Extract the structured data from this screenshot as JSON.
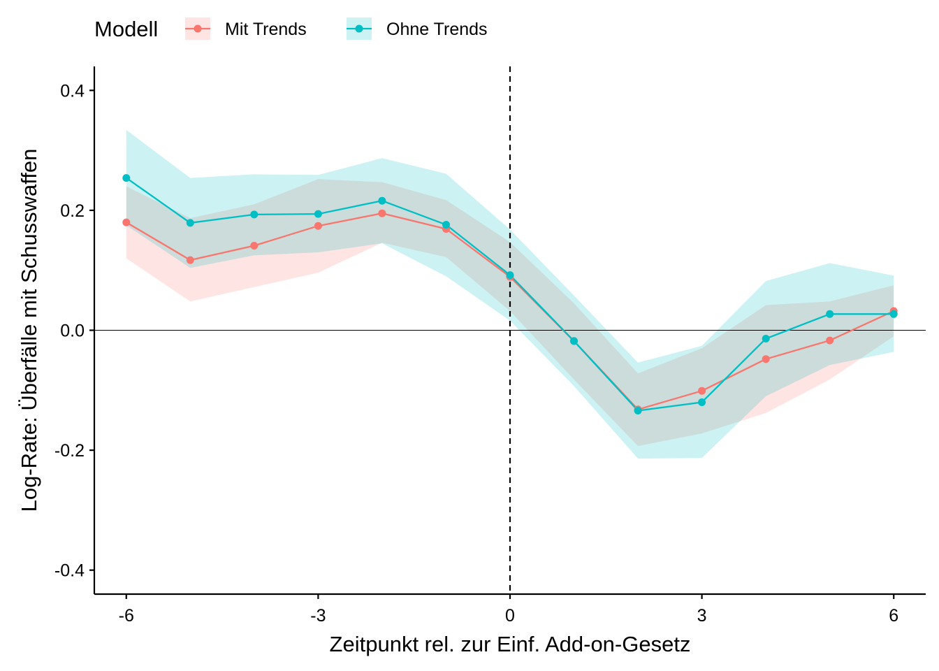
{
  "chart_data": {
    "type": "line",
    "xlabel": "Zeitpunkt rel. zur Einf. Add-on-Gesetz",
    "ylabel": "Log-Rate: Überfälle mit Schusswaffen",
    "xlim": [
      -6.5,
      6.5
    ],
    "ylim": [
      -0.44,
      0.44
    ],
    "xticks": [
      -6,
      -3,
      0,
      3,
      6
    ],
    "xtick_labels": [
      "-6",
      "-3",
      "0",
      "3",
      "6"
    ],
    "yticks": [
      -0.4,
      -0.2,
      0.0,
      0.2,
      0.4
    ],
    "ytick_labels": [
      "-0.4",
      "-0.2",
      "0.0",
      "0.2",
      "0.4"
    ],
    "reference_lines": {
      "vertical_dashed_x": 0,
      "horizontal_y": 0
    },
    "grid": false,
    "legend": {
      "title": "Modell",
      "position": "top-left"
    },
    "x": [
      -6,
      -5,
      -4,
      -3,
      -2,
      -1,
      0,
      1,
      2,
      3,
      4,
      5,
      6
    ],
    "series": [
      {
        "name": "Mit Trends",
        "color": "#F8766D",
        "values": [
          0.18,
          0.117,
          0.141,
          0.174,
          0.195,
          0.169,
          0.089,
          -0.018,
          -0.132,
          -0.101,
          -0.048,
          -0.017,
          0.032
        ],
        "lower": [
          0.12,
          0.048,
          0.072,
          0.096,
          0.146,
          0.122,
          0.032,
          -0.082,
          -0.193,
          -0.172,
          -0.138,
          -0.082,
          -0.01
        ],
        "upper": [
          0.24,
          0.187,
          0.21,
          0.252,
          0.247,
          0.217,
          0.147,
          0.045,
          -0.072,
          -0.03,
          0.042,
          0.048,
          0.075
        ]
      },
      {
        "name": "Ohne Trends",
        "color": "#00BFC4",
        "values": [
          0.254,
          0.179,
          0.193,
          0.194,
          0.216,
          0.176,
          0.092,
          -0.018,
          -0.134,
          -0.12,
          -0.014,
          0.027,
          0.027
        ],
        "lower": [
          0.175,
          0.104,
          0.125,
          0.13,
          0.145,
          0.09,
          0.016,
          -0.093,
          -0.214,
          -0.213,
          -0.11,
          -0.058,
          -0.036
        ],
        "upper": [
          0.334,
          0.254,
          0.26,
          0.259,
          0.287,
          0.261,
          0.168,
          0.058,
          -0.054,
          -0.026,
          0.082,
          0.112,
          0.091
        ]
      }
    ]
  }
}
